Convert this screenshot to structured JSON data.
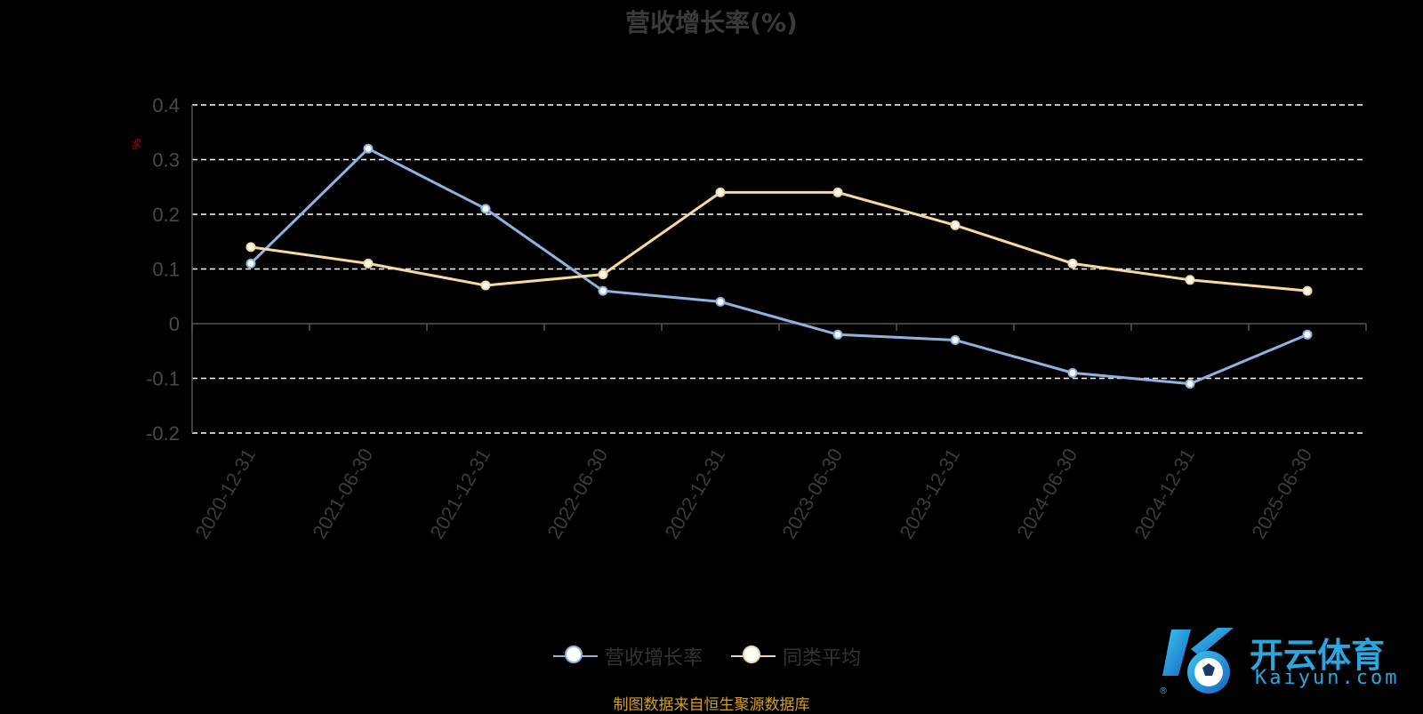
{
  "chart_data": {
    "type": "line",
    "title": "营收增长率(%)",
    "ylabel": "%",
    "xlabel": "",
    "categories": [
      "2020-12-31",
      "2021-06-30",
      "2021-12-31",
      "2022-06-30",
      "2022-12-31",
      "2023-06-30",
      "2023-12-31",
      "2024-06-30",
      "2024-12-31",
      "2025-06-30"
    ],
    "ylim": [
      -0.2,
      0.4
    ],
    "yticks": [
      0.4,
      0.3,
      0.2,
      0.1,
      0,
      -0.1,
      -0.2
    ],
    "ytick_labels": [
      "0.4",
      "0.3",
      "0.2",
      "0.1",
      "0",
      "-0.1",
      "-0.2"
    ],
    "grid": true,
    "legend_position": "bottom-center",
    "series": [
      {
        "name": "营收增长率",
        "color": "#8fb3e0",
        "values": [
          0.11,
          0.32,
          0.21,
          0.06,
          0.04,
          -0.02,
          -0.03,
          -0.09,
          -0.11,
          -0.02
        ]
      },
      {
        "name": "同类平均",
        "color": "#f7d9a0",
        "values": [
          0.14,
          0.11,
          0.07,
          0.09,
          0.24,
          0.24,
          0.18,
          0.11,
          0.08,
          0.06
        ]
      }
    ]
  },
  "footer": {
    "source": "制图数据来自恒生聚源数据库"
  },
  "logo": {
    "text": "开云体育",
    "sub": "Kaiyun.com"
  }
}
